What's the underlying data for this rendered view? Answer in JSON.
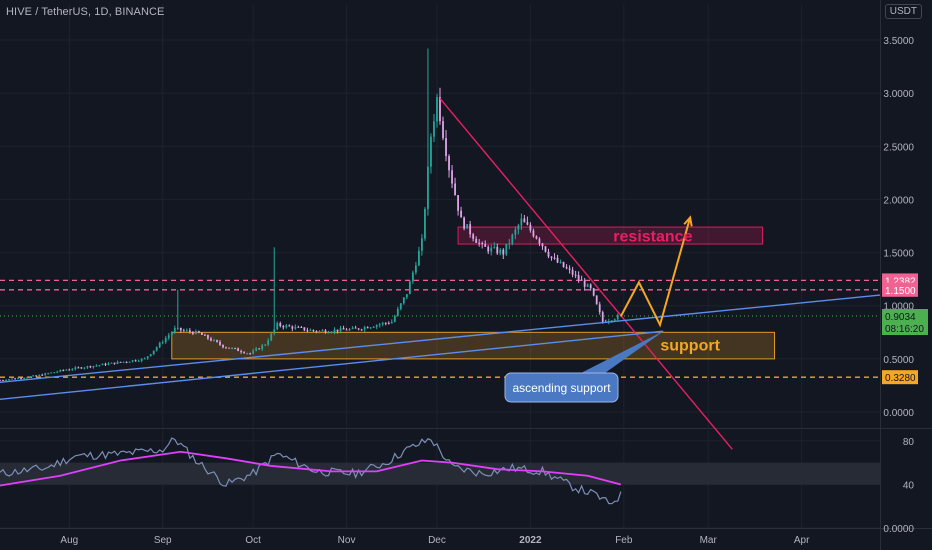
{
  "header": {
    "title": "HIVE / TetherUS, 1D, BINANCE",
    "currency_button": "USDT"
  },
  "chart_data": [
    {
      "type": "candlestick",
      "title": "HIVE / TetherUS, 1D, BINANCE",
      "ylim": [
        -0.15,
        3.65
      ],
      "y_ticks": [
        "3.5000",
        "3.0000",
        "2.5000",
        "2.0000",
        "1.5000",
        "1.0000",
        "0.5000",
        "0.0000"
      ],
      "y_tick_values": [
        3.5,
        3.0,
        2.5,
        2.0,
        1.5,
        1.0,
        0.5,
        0.0
      ],
      "x_ticks": [
        "Aug",
        "Sep",
        "Oct",
        "Nov",
        "Dec",
        "2022",
        "Feb",
        "Mar",
        "Apr"
      ],
      "x_tick_days": [
        23,
        54,
        84,
        115,
        145,
        176,
        207,
        235,
        266
      ],
      "x_range_days": [
        0,
        292
      ],
      "last_close_day": 206,
      "price_key_points": [
        {
          "day": 0,
          "price": 0.3
        },
        {
          "day": 12,
          "price": 0.34
        },
        {
          "day": 22,
          "price": 0.4
        },
        {
          "day": 35,
          "price": 0.45
        },
        {
          "day": 48,
          "price": 0.5
        },
        {
          "day": 58,
          "price": 0.78
        },
        {
          "day": 66,
          "price": 0.74
        },
        {
          "day": 74,
          "price": 0.62
        },
        {
          "day": 83,
          "price": 0.55
        },
        {
          "day": 88,
          "price": 0.64
        },
        {
          "day": 92,
          "price": 0.82
        },
        {
          "day": 105,
          "price": 0.76
        },
        {
          "day": 118,
          "price": 0.78
        },
        {
          "day": 130,
          "price": 0.85
        },
        {
          "day": 135,
          "price": 1.12
        },
        {
          "day": 140,
          "price": 1.6
        },
        {
          "day": 143,
          "price": 2.6
        },
        {
          "day": 145,
          "price": 2.95
        },
        {
          "day": 149,
          "price": 2.3
        },
        {
          "day": 153,
          "price": 1.8
        },
        {
          "day": 160,
          "price": 1.55
        },
        {
          "day": 167,
          "price": 1.5
        },
        {
          "day": 173,
          "price": 1.8
        },
        {
          "day": 178,
          "price": 1.65
        },
        {
          "day": 183,
          "price": 1.45
        },
        {
          "day": 190,
          "price": 1.3
        },
        {
          "day": 196,
          "price": 1.15
        },
        {
          "day": 200,
          "price": 0.85
        },
        {
          "day": 203,
          "price": 0.88
        },
        {
          "day": 206,
          "price": 0.9034
        }
      ],
      "wick_highlights": [
        {
          "day": 59,
          "price_high": 1.15
        },
        {
          "day": 91,
          "price_high": 1.55
        },
        {
          "day": 142,
          "price_high": 3.42
        },
        {
          "day": 146,
          "price_high": 3.05
        }
      ],
      "horizontal_levels": [
        {
          "label": "1.2382",
          "value": 1.2382,
          "color": "#f06292"
        },
        {
          "label": "1.1500",
          "value": 1.15,
          "color": "#f06292"
        },
        {
          "label": "0.3280",
          "value": 0.328,
          "color": "#f5a623"
        }
      ],
      "current_price": {
        "label": "0.9034",
        "countdown": "08:16:20",
        "value": 0.9034,
        "color": "#4caf50"
      },
      "zones": [
        {
          "label": "resistance",
          "price_low": 1.58,
          "price_high": 1.74,
          "day_start": 152,
          "day_end": 253,
          "color": "#e91e63"
        },
        {
          "label": "support",
          "price_low": 0.5,
          "price_high": 0.75,
          "day_start": 57,
          "day_end": 257,
          "color": "#f5a623"
        }
      ],
      "trendlines": [
        {
          "name": "downtrend",
          "color": "#e91e63",
          "points": [
            {
              "day": 146,
              "price": 2.95
            },
            {
              "day": 243,
              "price": -0.35
            }
          ]
        },
        {
          "name": "ascending support upper",
          "color": "#5b8def",
          "points": [
            {
              "day": 0,
              "price": 0.28
            },
            {
              "day": 292,
              "price": 1.1
            }
          ]
        },
        {
          "name": "ascending support lower",
          "color": "#5b8def",
          "points": [
            {
              "day": 0,
              "price": 0.12
            },
            {
              "day": 220,
              "price": 0.76
            }
          ]
        }
      ],
      "projection_path": [
        {
          "day": 206,
          "price": 0.9
        },
        {
          "day": 212,
          "price": 1.22
        },
        {
          "day": 219,
          "price": 0.82
        },
        {
          "day": 229,
          "price": 1.83
        }
      ],
      "annotations": [
        {
          "text": "resistance",
          "color": "#e91e63"
        },
        {
          "text": "support",
          "color": "#f5a623"
        },
        {
          "text": "ascending support",
          "color": "#ffffff",
          "background": "#4a78c2"
        }
      ]
    },
    {
      "type": "line",
      "title": "",
      "ylim": [
        0,
        90
      ],
      "y_ticks": [
        "80",
        "40",
        "0.0000"
      ],
      "y_tick_values": [
        80,
        40,
        0
      ],
      "band": [
        40,
        60
      ],
      "series": [
        {
          "color": "#7c8fb8",
          "points": [
            {
              "day": 0,
              "value": 50
            },
            {
              "day": 15,
              "value": 55
            },
            {
              "day": 25,
              "value": 66
            },
            {
              "day": 40,
              "value": 68
            },
            {
              "day": 54,
              "value": 72
            },
            {
              "day": 58,
              "value": 82
            },
            {
              "day": 65,
              "value": 62
            },
            {
              "day": 75,
              "value": 40
            },
            {
              "day": 84,
              "value": 50
            },
            {
              "day": 92,
              "value": 68
            },
            {
              "day": 105,
              "value": 52
            },
            {
              "day": 118,
              "value": 50
            },
            {
              "day": 128,
              "value": 60
            },
            {
              "day": 135,
              "value": 72
            },
            {
              "day": 143,
              "value": 82
            },
            {
              "day": 150,
              "value": 56
            },
            {
              "day": 160,
              "value": 50
            },
            {
              "day": 170,
              "value": 55
            },
            {
              "day": 180,
              "value": 52
            },
            {
              "day": 190,
              "value": 38
            },
            {
              "day": 198,
              "value": 30
            },
            {
              "day": 202,
              "value": 22
            },
            {
              "day": 206,
              "value": 30
            }
          ]
        },
        {
          "color": "#e040fb",
          "points": [
            {
              "day": 0,
              "value": 39
            },
            {
              "day": 20,
              "value": 48
            },
            {
              "day": 40,
              "value": 62
            },
            {
              "day": 60,
              "value": 70
            },
            {
              "day": 75,
              "value": 64
            },
            {
              "day": 90,
              "value": 57
            },
            {
              "day": 110,
              "value": 52
            },
            {
              "day": 125,
              "value": 52
            },
            {
              "day": 140,
              "value": 62
            },
            {
              "day": 150,
              "value": 60
            },
            {
              "day": 165,
              "value": 54
            },
            {
              "day": 180,
              "value": 52
            },
            {
              "day": 195,
              "value": 48
            },
            {
              "day": 206,
              "value": 40
            }
          ]
        }
      ]
    }
  ]
}
